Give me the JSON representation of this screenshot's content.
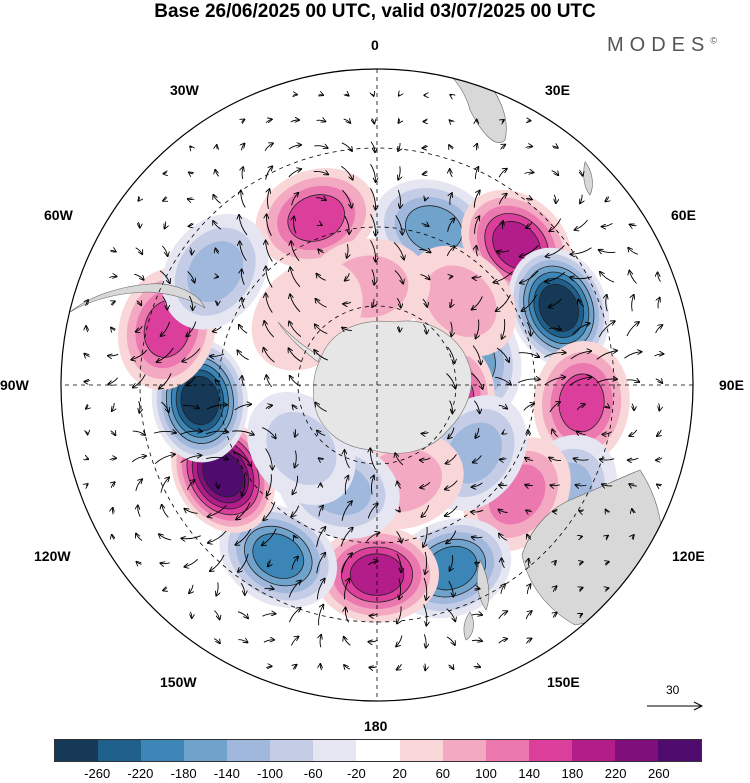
{
  "title": "Base 26/06/2025 00 UTC, valid 03/07/2025 00 UTC",
  "brand": {
    "name": "MODES",
    "mark": "©"
  },
  "longitude_labels": {
    "lon_0": "0",
    "lon_30e": "30E",
    "lon_60e": "60E",
    "lon_90e": "90E",
    "lon_120e": "120E",
    "lon_150e": "150E",
    "lon_180": "180",
    "lon_150w": "150W",
    "lon_120w": "120W",
    "lon_90w": "90W",
    "lon_60w": "60W",
    "lon_30w": "30W"
  },
  "vector_scale": {
    "label": "30"
  },
  "colorbar": {
    "colors": [
      "#163957",
      "#1f5f8b",
      "#3c86b7",
      "#6fa3cc",
      "#9fb8dc",
      "#c5cde6",
      "#e6e6f2",
      "#ffffff",
      "#f9d6d8",
      "#f3a9c1",
      "#ec78b0",
      "#dc3e9c",
      "#b31d8a",
      "#7f0f7b",
      "#4f0b6d"
    ],
    "tick_labels": [
      "-260",
      "-220",
      "-180",
      "-140",
      "-100",
      "-60",
      "-20",
      "20",
      "60",
      "100",
      "140",
      "180",
      "220",
      "260"
    ]
  },
  "colors": {
    "land": "#d8d8d8",
    "antarctica": "#e6e6e6",
    "graticule": "#000000"
  },
  "anomalies": [
    {
      "lon": -20,
      "lat": -45,
      "value": 160
    },
    {
      "lon": 20,
      "lat": -48,
      "value": -140
    },
    {
      "lon": 45,
      "lat": -40,
      "value": 180
    },
    {
      "lon": 67,
      "lat": -40,
      "value": -260
    },
    {
      "lon": 95,
      "lat": -38,
      "value": 140
    },
    {
      "lon": 120,
      "lat": -35,
      "value": -100
    },
    {
      "lon": 128,
      "lat": -45,
      "value": 100
    },
    {
      "lon": 158,
      "lat": -40,
      "value": -180
    },
    {
      "lon": 180,
      "lat": -42,
      "value": 200
    },
    {
      "lon": -150,
      "lat": -40,
      "value": -180
    },
    {
      "lon": -120,
      "lat": -45,
      "value": 280
    },
    {
      "lon": -95,
      "lat": -45,
      "value": -260
    },
    {
      "lon": -75,
      "lat": -35,
      "value": 150
    },
    {
      "lon": -55,
      "lat": -40,
      "value": -130
    },
    {
      "lon": 75,
      "lat": -65,
      "value": -140
    },
    {
      "lon": 105,
      "lat": -72,
      "value": 200
    },
    {
      "lon": 45,
      "lat": -60,
      "value": 80
    },
    {
      "lon": -5,
      "lat": -65,
      "value": 60
    },
    {
      "lon": -45,
      "lat": -65,
      "value": 40
    },
    {
      "lon": 125,
      "lat": -60,
      "value": -120
    },
    {
      "lon": 165,
      "lat": -65,
      "value": 80
    },
    {
      "lon": -160,
      "lat": -62,
      "value": -100
    },
    {
      "lon": -130,
      "lat": -65,
      "value": -80
    }
  ]
}
